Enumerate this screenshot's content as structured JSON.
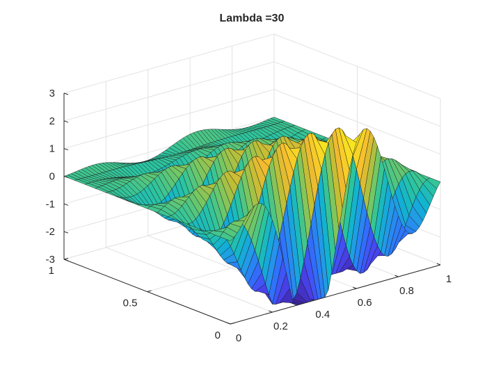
{
  "chart_data": {
    "type": "surface",
    "title": "Lambda =30",
    "xlabel": "",
    "ylabel": "",
    "zlabel": "",
    "xlim": [
      0,
      1
    ],
    "ylim": [
      0,
      1
    ],
    "zlim": [
      -3,
      3
    ],
    "x_ticks": [
      0,
      0.2,
      0.4,
      0.6,
      0.8,
      1
    ],
    "x_tick_labels": [
      "0",
      "0.2",
      "0.4",
      "0.6",
      "0.8",
      "1"
    ],
    "y_ticks": [
      0,
      0.5,
      1
    ],
    "y_tick_labels": [
      "0",
      "0.5",
      "1"
    ],
    "z_ticks": [
      -3,
      -2,
      -1,
      0,
      1,
      2,
      3
    ],
    "z_tick_labels": [
      "-3",
      "-2",
      "-1",
      "0",
      "1",
      "2",
      "3"
    ],
    "grid": true,
    "colormap": "parula",
    "colormap_stops": [
      "#3e26a8",
      "#4a44f1",
      "#3070fc",
      "#2497e9",
      "#10b2d3",
      "#2bc4a0",
      "#73c765",
      "#bfbe37",
      "#f5ba2f",
      "#f8de23",
      "#f9fb15"
    ],
    "mesh": {
      "x_samples": 60,
      "y_samples": 16
    },
    "surface_function": "z = sin(pi*x) * (1.3 - 1.4*y) * 3 * sin(2*pi*(2.5*y + 1.8*x) + 0.5) - 0.9 * sin(pi*x) * (1 - y)"
  }
}
